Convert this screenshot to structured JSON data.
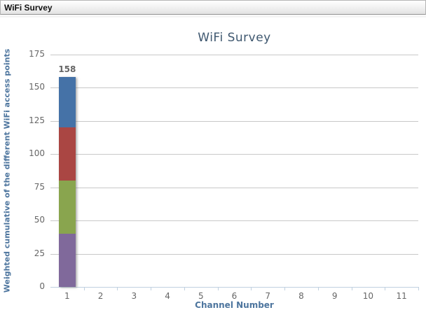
{
  "header": {
    "title": "WiFi Survey"
  },
  "colors": {
    "chart_title": "#3E576F",
    "axis_title": "#4D759E",
    "tick_label": "#666666",
    "gridline": "#C8C8C8",
    "axis_line": "#C0D0E0",
    "total_label": "#666666"
  },
  "chart_data": {
    "type": "bar",
    "stacked": true,
    "title": "WiFi Survey",
    "xlabel": "Channel Number",
    "ylabel": "Weighted cumulative of the different WiFi access points",
    "categories": [
      "1",
      "2",
      "3",
      "4",
      "5",
      "6",
      "7",
      "8",
      "9",
      "10",
      "11"
    ],
    "ylim": [
      0,
      175
    ],
    "yticks": [
      0,
      25,
      50,
      75,
      100,
      125,
      150,
      175
    ],
    "grid": "horizontal-only",
    "legend": "none",
    "series": [
      {
        "name": "stack-segment-1-purple",
        "color": "#80699B",
        "values": [
          40,
          0,
          0,
          0,
          0,
          0,
          0,
          0,
          0,
          0,
          0
        ]
      },
      {
        "name": "stack-segment-2-green",
        "color": "#89A54E",
        "values": [
          40,
          0,
          0,
          0,
          0,
          0,
          0,
          0,
          0,
          0,
          0
        ]
      },
      {
        "name": "stack-segment-3-red",
        "color": "#AA4643",
        "values": [
          40,
          0,
          0,
          0,
          0,
          0,
          0,
          0,
          0,
          0,
          0
        ]
      },
      {
        "name": "stack-segment-4-blue",
        "color": "#4572A7",
        "values": [
          38,
          0,
          0,
          0,
          0,
          0,
          0,
          0,
          0,
          0,
          0
        ]
      }
    ],
    "stack_total_labels": [
      "158",
      "",
      "",
      "",
      "",
      "",
      "",
      "",
      "",
      "",
      ""
    ]
  }
}
